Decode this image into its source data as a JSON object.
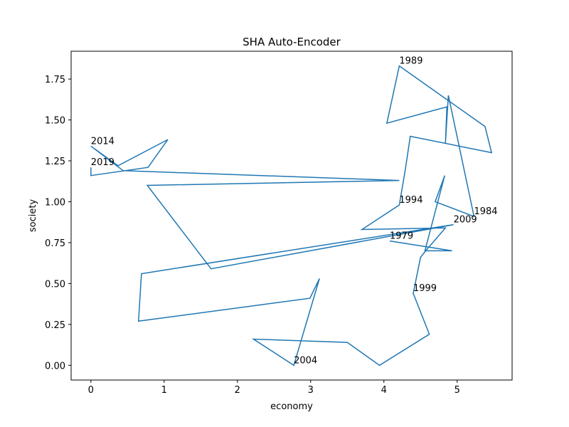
{
  "chart_data": {
    "type": "line",
    "title": "SHA Auto-Encoder",
    "xlabel": "economy",
    "ylabel": "society",
    "series": [
      {
        "color": "#1f77b4",
        "x": [
          4.08,
          4.93,
          4.56,
          4.83,
          4.7,
          5.23,
          4.88,
          4.84,
          4.86,
          4.04,
          4.21,
          5.38,
          5.47,
          4.36,
          4.29,
          4.21,
          3.7,
          4.84,
          4.57,
          4.5,
          4.4,
          4.62,
          3.94,
          3.5,
          2.22,
          2.77,
          3.12,
          2.99,
          0.65,
          0.69,
          4.95,
          1.64,
          0.77,
          4.21,
          0.44,
          0,
          0.37,
          1.05,
          0.78,
          0,
          0
        ],
        "values": [
          0.76,
          0.7,
          0.7,
          1.16,
          1.0,
          0.91,
          1.65,
          1.36,
          1.58,
          1.48,
          1.83,
          1.46,
          1.3,
          1.4,
          1.19,
          0.98,
          0.83,
          0.84,
          0.7,
          0.66,
          0.44,
          0.19,
          0,
          0.14,
          0.16,
          0,
          0.53,
          0.41,
          0.27,
          0.56,
          0.86,
          0.59,
          1.1,
          1.13,
          1.19,
          1.34,
          1.22,
          1.38,
          1.21,
          1.16,
          1.21
        ],
        "point_labels": [
          "1979",
          null,
          null,
          null,
          null,
          "1984",
          null,
          null,
          null,
          null,
          "1989",
          null,
          null,
          null,
          null,
          "1994",
          null,
          null,
          null,
          null,
          "1999",
          null,
          null,
          null,
          null,
          "2004",
          null,
          null,
          null,
          null,
          "2009",
          null,
          null,
          null,
          null,
          "2014",
          null,
          null,
          null,
          null,
          "2019"
        ]
      }
    ],
    "xlim": [
      -0.27,
      5.75
    ],
    "xticks": [
      0,
      1,
      2,
      3,
      4,
      5
    ],
    "ylim": [
      -0.09,
      1.92
    ],
    "yticks": [
      {
        "value": 0,
        "label": "0.00"
      },
      0.25,
      {
        "value": 0.5,
        "label": "0.50"
      },
      0.75,
      {
        "value": 1,
        "label": "1.00"
      },
      1.25,
      {
        "value": 1.5,
        "label": "1.50"
      },
      1.75
    ],
    "grid": false
  }
}
